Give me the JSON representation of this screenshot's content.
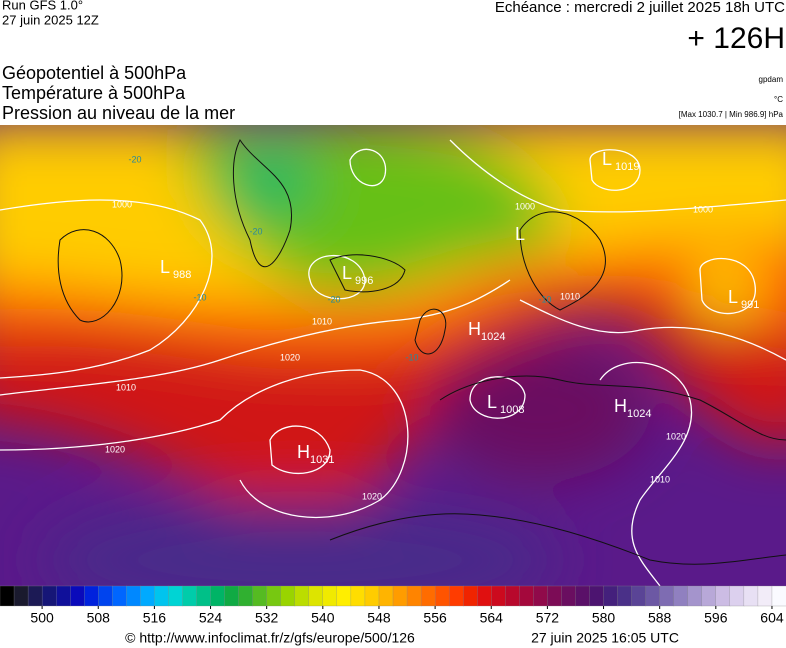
{
  "header": {
    "run": "Run GFS 1.0°",
    "run_date": "27 juin 2025 12Z",
    "echeance": "Echéance : mercredi 2 juillet 2025 18h UTC",
    "lead": "+ 126H"
  },
  "titles": [
    "Géopotentiel à 500hPa",
    "Température à 500hPa",
    "Pression au niveau de la mer"
  ],
  "units": {
    "geopotential": "gpdam",
    "temperature": "°C",
    "pressure": "[Max 1030.7 | Min 986.9] hPa"
  },
  "map": {
    "centers": [
      {
        "kind": "L",
        "value": "988"
      },
      {
        "kind": "L",
        "value": "996"
      },
      {
        "kind": "H",
        "value": "1024"
      },
      {
        "kind": "L",
        "value": "1008"
      },
      {
        "kind": "H",
        "value": "1024"
      },
      {
        "kind": "H",
        "value": "1031"
      },
      {
        "kind": "L",
        "value": "991"
      },
      {
        "kind": "L",
        "value": "1019"
      },
      {
        "kind": "L"
      }
    ],
    "isobar_labels": [
      "1000",
      "1000",
      "1000",
      "1010",
      "1020",
      "1010",
      "1020",
      "1020",
      "1020",
      "1010",
      "1010"
    ],
    "temperature_labels": [
      "-20",
      "-20",
      "-20",
      "-10",
      "-10",
      "-10"
    ]
  },
  "colorbar": {
    "range": [
      494,
      606
    ],
    "ticks": [
      500,
      508,
      516,
      524,
      532,
      540,
      548,
      556,
      564,
      572,
      580,
      588,
      596,
      604
    ],
    "colors": [
      "#000000",
      "#1a1a2e",
      "#1c1a55",
      "#161677",
      "#10109a",
      "#0a0abb",
      "#0022dd",
      "#0044ee",
      "#0066ff",
      "#0088ff",
      "#00aaff",
      "#00c4ee",
      "#00d4d4",
      "#00ccaa",
      "#00c088",
      "#00b466",
      "#10aa44",
      "#30b030",
      "#55bb22",
      "#77c811",
      "#99d400",
      "#bbdd00",
      "#dde400",
      "#f0ea00",
      "#ffee00",
      "#ffdd00",
      "#ffcc00",
      "#ffb400",
      "#ff9c00",
      "#ff8400",
      "#ff6c00",
      "#ff5400",
      "#ff3c00",
      "#f02400",
      "#e01010",
      "#cc0a1e",
      "#b8082c",
      "#a4083c",
      "#900a4a",
      "#7c0c56",
      "#6a0e60",
      "#5a1068",
      "#4c1470",
      "#44207c",
      "#4a3088",
      "#5a4496",
      "#6c58a4",
      "#7e6cb2",
      "#9080c0",
      "#a494cc",
      "#b8a8d8",
      "#ccbce4",
      "#dcd0ee",
      "#e8e0f4",
      "#f2ecf8",
      "#fafaff"
    ]
  },
  "footer": {
    "url": "© http://www.infoclimat.fr/z/gfs/europe/500/126",
    "generated": "27 juin 2025 16:05 UTC"
  }
}
